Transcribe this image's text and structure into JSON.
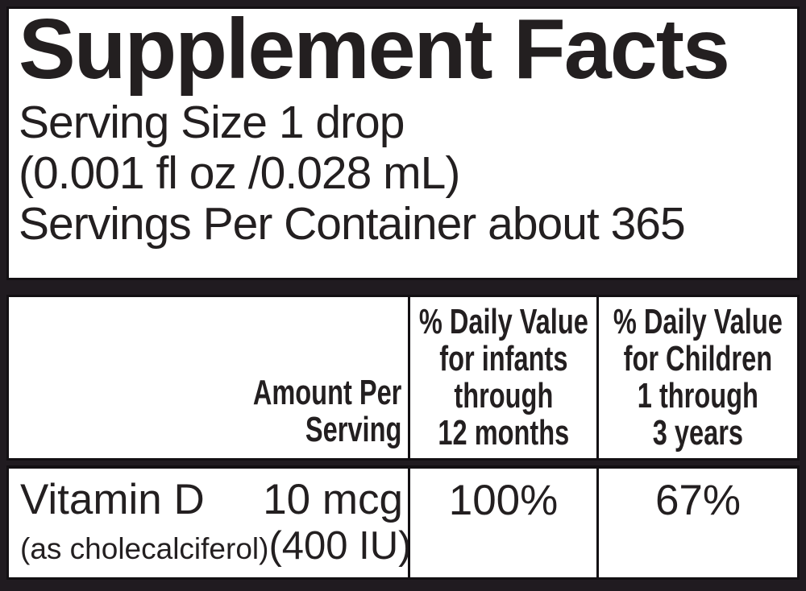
{
  "title": "Supplement Facts",
  "serving": {
    "size_line": "Serving Size 1 drop",
    "volume_line": "(0.001 fl oz /0.028 mL)",
    "per_container_line": "Servings Per Container about 365"
  },
  "table": {
    "header": {
      "amount_col": {
        "line1": "Amount Per",
        "line2": "Serving"
      },
      "dv_infants": {
        "line1": "% Daily Value",
        "line2": "for infants",
        "line3": "through",
        "line4": "12 months"
      },
      "dv_children": {
        "line1": "% Daily Value",
        "line2": "for Children",
        "line3": "1 through",
        "line4": "3 years"
      }
    },
    "rows": [
      {
        "nutrient": "Vitamin D",
        "nutrient_note": "(as cholecalciferol)",
        "amount": "10 mcg",
        "amount_note": "(400 IU)",
        "dv_infants": "100%",
        "dv_children": "67%"
      }
    ]
  },
  "colors": {
    "background": "#201b20",
    "panel": "#ffffff",
    "text": "#231f20",
    "border": "#131013"
  }
}
